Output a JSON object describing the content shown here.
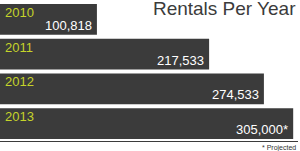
{
  "chart_data": {
    "type": "bar",
    "title": "Rentals Per Year",
    "orientation": "horizontal",
    "categories": [
      "2010",
      "2011",
      "2012",
      "2013"
    ],
    "values": [
      100818,
      217533,
      274533,
      305000
    ],
    "value_labels": [
      "100,818",
      "217,533",
      "274,533",
      "305,000*"
    ],
    "data_labels": true,
    "color": "#3b3b3b",
    "xlim": [
      0,
      310000
    ],
    "tick_labels": false,
    "grid": false,
    "annotations": [
      "* Projected"
    ]
  }
}
